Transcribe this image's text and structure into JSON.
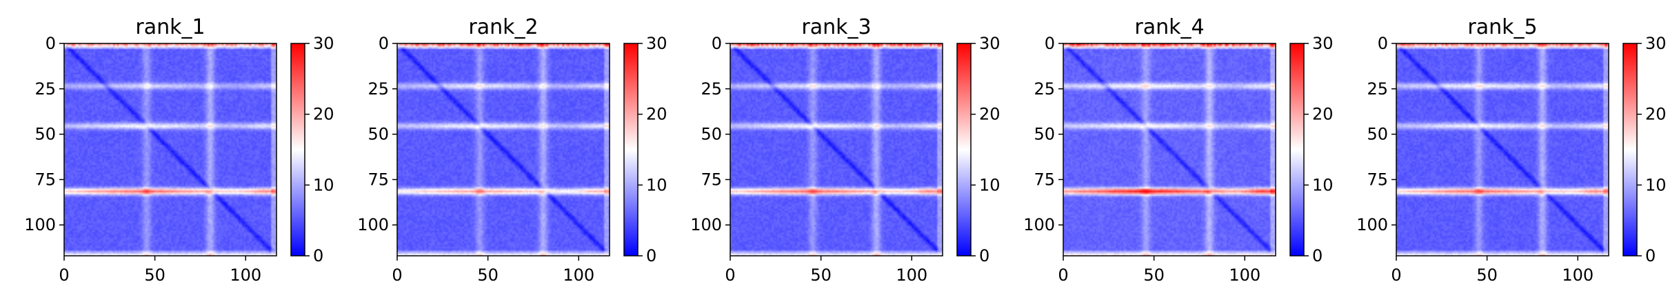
{
  "chart_data": [
    {
      "type": "heatmap",
      "title": "rank_1",
      "size": 117,
      "xlim": [
        0,
        117
      ],
      "ylim": [
        117,
        0
      ],
      "xticks": [
        0,
        50,
        100
      ],
      "yticks": [
        0,
        25,
        50,
        75,
        100
      ],
      "colorbar": {
        "range": [
          0,
          30
        ],
        "ticks": [
          0,
          10,
          20,
          30
        ],
        "colors": [
          "#0000ff",
          "#ffffff",
          "#ff0000"
        ]
      },
      "features": {
        "diagonal": 2,
        "rowBands": [
          [
            23,
            7
          ],
          [
            45,
            9
          ],
          [
            81,
            18
          ]
        ],
        "colBands": [
          [
            45,
            6
          ],
          [
            80,
            8
          ]
        ],
        "topEdge": 20,
        "bottomEdge": 12,
        "base": 4.5
      }
    },
    {
      "type": "heatmap",
      "title": "rank_2",
      "size": 117,
      "xlim": [
        0,
        117
      ],
      "ylim": [
        117,
        0
      ],
      "xticks": [
        0,
        50,
        100
      ],
      "yticks": [
        0,
        25,
        50,
        75,
        100
      ],
      "colorbar": {
        "range": [
          0,
          30
        ],
        "ticks": [
          0,
          10,
          20,
          30
        ],
        "colors": [
          "#0000ff",
          "#ffffff",
          "#ff0000"
        ]
      },
      "features": {
        "diagonal": 2,
        "rowBands": [
          [
            23,
            8
          ],
          [
            45,
            9
          ],
          [
            81,
            15
          ]
        ],
        "colBands": [
          [
            45,
            6
          ],
          [
            80,
            8
          ]
        ],
        "topEdge": 24,
        "bottomEdge": 12,
        "base": 4.5
      }
    },
    {
      "type": "heatmap",
      "title": "rank_3",
      "size": 117,
      "xlim": [
        0,
        117
      ],
      "ylim": [
        117,
        0
      ],
      "xticks": [
        0,
        50,
        100
      ],
      "yticks": [
        0,
        25,
        50,
        75,
        100
      ],
      "colorbar": {
        "range": [
          0,
          30
        ],
        "ticks": [
          0,
          10,
          20,
          30
        ],
        "colors": [
          "#0000ff",
          "#ffffff",
          "#ff0000"
        ]
      },
      "features": {
        "diagonal": 2,
        "rowBands": [
          [
            23,
            8
          ],
          [
            45,
            9
          ],
          [
            81,
            18
          ]
        ],
        "colBands": [
          [
            45,
            6
          ],
          [
            80,
            8
          ]
        ],
        "topEdge": 24,
        "bottomEdge": 12,
        "base": 4.5
      }
    },
    {
      "type": "heatmap",
      "title": "rank_4",
      "size": 117,
      "xlim": [
        0,
        117
      ],
      "ylim": [
        117,
        0
      ],
      "xticks": [
        0,
        50,
        100
      ],
      "yticks": [
        0,
        25,
        50,
        75,
        100
      ],
      "colorbar": {
        "range": [
          0,
          30
        ],
        "ticks": [
          0,
          10,
          20,
          30
        ],
        "colors": [
          "#0000ff",
          "#ffffff",
          "#ff0000"
        ]
      },
      "features": {
        "diagonal": 2,
        "rowBands": [
          [
            23,
            9
          ],
          [
            45,
            9
          ],
          [
            81,
            22
          ]
        ],
        "colBands": [
          [
            45,
            6
          ],
          [
            80,
            8
          ]
        ],
        "topEdge": 24,
        "bottomEdge": 13,
        "base": 5
      }
    },
    {
      "type": "heatmap",
      "title": "rank_5",
      "size": 117,
      "xlim": [
        0,
        117
      ],
      "ylim": [
        117,
        0
      ],
      "xticks": [
        0,
        50,
        100
      ],
      "yticks": [
        0,
        25,
        50,
        75,
        100
      ],
      "colorbar": {
        "range": [
          0,
          30
        ],
        "ticks": [
          0,
          10,
          20,
          30
        ],
        "colors": [
          "#0000ff",
          "#ffffff",
          "#ff0000"
        ]
      },
      "features": {
        "diagonal": 2,
        "rowBands": [
          [
            23,
            9
          ],
          [
            45,
            9
          ],
          [
            81,
            18
          ]
        ],
        "colBands": [
          [
            45,
            6
          ],
          [
            80,
            8
          ]
        ],
        "topEdge": 22,
        "bottomEdge": 12,
        "base": 4.5
      }
    }
  ]
}
